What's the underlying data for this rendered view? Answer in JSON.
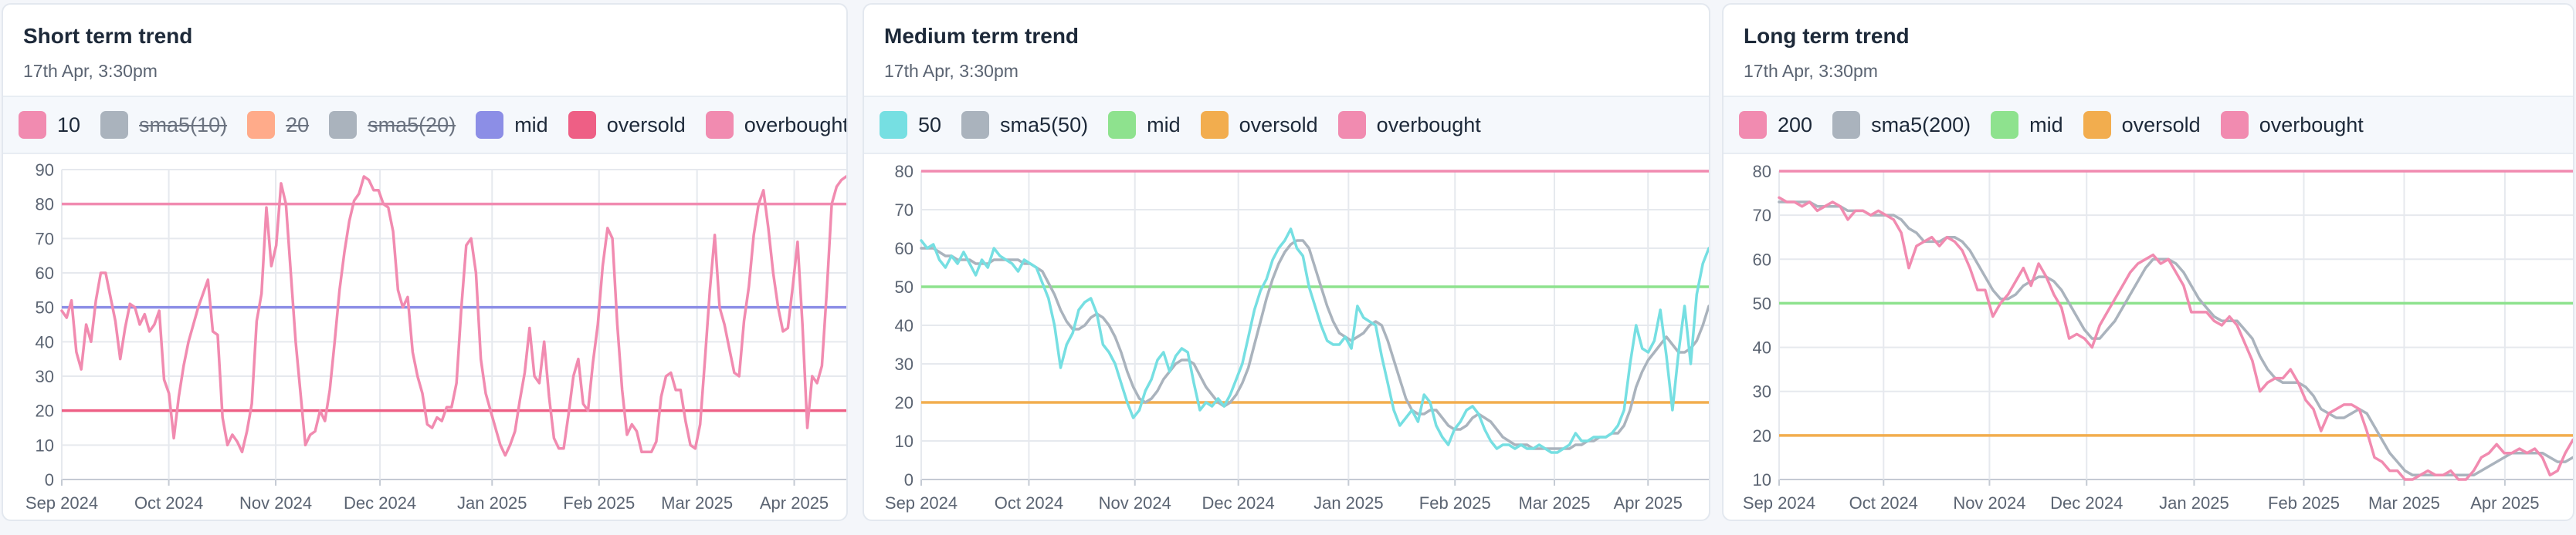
{
  "charts": [
    {
      "title": "Short term trend",
      "timestamp": "17th Apr, 3:30pm",
      "legend": [
        {
          "label": "10",
          "color": "#f18bb0",
          "hidden": false
        },
        {
          "label": "sma5(10)",
          "color": "#aab3bd",
          "hidden": true
        },
        {
          "label": "20",
          "color": "#ffab8a",
          "hidden": true
        },
        {
          "label": "sma5(20)",
          "color": "#aab3bd",
          "hidden": true
        },
        {
          "label": "mid",
          "color": "#8c8ee6",
          "hidden": false
        },
        {
          "label": "oversold",
          "color": "#ee5f85",
          "hidden": false
        },
        {
          "label": "overbought",
          "color": "#f18bb0",
          "hidden": false
        }
      ]
    },
    {
      "title": "Medium term trend",
      "timestamp": "17th Apr, 3:30pm",
      "legend": [
        {
          "label": "50",
          "color": "#76dfe2",
          "hidden": false
        },
        {
          "label": "sma5(50)",
          "color": "#aab3bd",
          "hidden": false
        },
        {
          "label": "mid",
          "color": "#8ee28e",
          "hidden": false
        },
        {
          "label": "oversold",
          "color": "#f2ad4e",
          "hidden": false
        },
        {
          "label": "overbought",
          "color": "#f18bb0",
          "hidden": false
        }
      ]
    },
    {
      "title": "Long term trend",
      "timestamp": "17th Apr, 3:30pm",
      "legend": [
        {
          "label": "200",
          "color": "#f18bb0",
          "hidden": false
        },
        {
          "label": "sma5(200)",
          "color": "#aab3bd",
          "hidden": false
        },
        {
          "label": "mid",
          "color": "#8ee28e",
          "hidden": false
        },
        {
          "label": "oversold",
          "color": "#f2ad4e",
          "hidden": false
        },
        {
          "label": "overbought",
          "color": "#f18bb0",
          "hidden": false
        }
      ]
    }
  ],
  "chart_data": [
    {
      "type": "line",
      "title": "Short term trend",
      "x_ticks": [
        "Sep 2024",
        "Oct 2024",
        "Nov 2024",
        "Dec 2024",
        "Jan 2025",
        "Feb 2025",
        "Mar 2025",
        "Apr 2025"
      ],
      "ylim": [
        0,
        90
      ],
      "y_ticks": [
        0,
        10,
        20,
        30,
        40,
        50,
        60,
        70,
        80,
        90
      ],
      "grid": true,
      "reference_lines": [
        {
          "name": "overbought",
          "value": 80,
          "color": "#f18bb0"
        },
        {
          "name": "mid",
          "value": 50,
          "color": "#8c8ee6"
        },
        {
          "name": "oversold",
          "value": 20,
          "color": "#ee5f85"
        }
      ],
      "series": [
        {
          "name": "10",
          "color": "#f18bb0",
          "values": [
            49,
            47,
            52,
            37,
            32,
            45,
            40,
            52,
            60,
            60,
            53,
            46,
            35,
            44,
            51,
            50,
            45,
            48,
            43,
            45,
            49,
            29,
            25,
            12,
            24,
            33,
            40,
            45,
            50,
            54,
            58,
            43,
            42,
            18,
            10,
            13,
            11,
            8,
            14,
            22,
            46,
            54,
            79,
            62,
            68,
            86,
            80,
            60,
            40,
            25,
            10,
            13,
            14,
            20,
            17,
            26,
            40,
            55,
            66,
            75,
            81,
            83,
            88,
            87,
            84,
            84,
            80,
            79,
            72,
            55,
            50,
            53,
            37,
            30,
            25,
            16,
            15,
            18,
            17,
            21,
            21,
            28,
            50,
            68,
            70,
            60,
            35,
            25,
            20,
            15,
            10,
            7,
            10,
            14,
            23,
            31,
            44,
            30,
            28,
            40,
            24,
            12,
            9,
            9,
            19,
            30,
            35,
            22,
            20,
            34,
            45,
            62,
            73,
            70,
            45,
            26,
            13,
            16,
            14,
            8,
            8,
            8,
            11,
            24,
            30,
            31,
            26,
            26,
            17,
            10,
            9,
            16,
            35,
            55,
            71,
            50,
            45,
            38,
            31,
            30,
            46,
            56,
            71,
            80,
            84,
            73,
            60,
            50,
            43,
            44,
            56,
            69,
            45,
            15,
            30,
            28,
            33,
            55,
            80,
            85,
            87,
            88
          ]
        },
        {
          "name": "sma5(10)",
          "color": "#aab3bd",
          "hidden": true
        },
        {
          "name": "20",
          "color": "#ffab8a",
          "hidden": true
        },
        {
          "name": "sma5(20)",
          "color": "#aab3bd",
          "hidden": true
        }
      ]
    },
    {
      "type": "line",
      "title": "Medium term trend",
      "x_ticks": [
        "Sep 2024",
        "Oct 2024",
        "Nov 2024",
        "Dec 2024",
        "Jan 2025",
        "Feb 2025",
        "Mar 2025",
        "Apr 2025"
      ],
      "ylim": [
        0,
        80
      ],
      "y_ticks": [
        0,
        10,
        20,
        30,
        40,
        50,
        60,
        70,
        80
      ],
      "grid": true,
      "reference_lines": [
        {
          "name": "overbought",
          "value": 80,
          "color": "#f18bb0"
        },
        {
          "name": "mid",
          "value": 50,
          "color": "#8ee28e"
        },
        {
          "name": "oversold",
          "value": 20,
          "color": "#f2ad4e"
        }
      ],
      "series": [
        {
          "name": "50",
          "color": "#76dfe2",
          "values": [
            62,
            60,
            61,
            57,
            55,
            58,
            56,
            59,
            56,
            53,
            57,
            55,
            60,
            58,
            57,
            56,
            54,
            57,
            56,
            55,
            51,
            47,
            40,
            29,
            35,
            38,
            44,
            46,
            47,
            43,
            35,
            33,
            30,
            25,
            20,
            16,
            18,
            23,
            26,
            31,
            33,
            28,
            32,
            34,
            33,
            25,
            18,
            20,
            19,
            21,
            19,
            22,
            26,
            30,
            37,
            44,
            49,
            52,
            57,
            60,
            62,
            65,
            60,
            58,
            50,
            45,
            40,
            36,
            35,
            35,
            37,
            34,
            45,
            42,
            41,
            40,
            32,
            25,
            18,
            14,
            16,
            18,
            15,
            22,
            20,
            14,
            11,
            9,
            13,
            15,
            18,
            19,
            17,
            13,
            10,
            8,
            9,
            9,
            8,
            9,
            8,
            8,
            9,
            8,
            7,
            7,
            8,
            9,
            12,
            10,
            10,
            11,
            11,
            11,
            12,
            14,
            18,
            30,
            40,
            34,
            33,
            36,
            44,
            32,
            18,
            33,
            45,
            30,
            48,
            56,
            60
          ]
        },
        {
          "name": "sma5(50)",
          "color": "#aab3bd",
          "values": [
            60,
            60,
            60,
            59,
            58,
            58,
            57,
            57,
            57,
            56,
            56,
            56,
            57,
            57,
            57,
            57,
            57,
            56,
            56,
            55,
            54,
            51,
            48,
            44,
            41,
            39,
            39,
            40,
            42,
            43,
            42,
            40,
            37,
            33,
            28,
            24,
            21,
            20,
            21,
            23,
            26,
            28,
            30,
            31,
            31,
            30,
            27,
            24,
            22,
            20,
            19,
            20,
            22,
            25,
            29,
            35,
            41,
            47,
            52,
            56,
            59,
            61,
            62,
            62,
            60,
            55,
            50,
            45,
            41,
            38,
            37,
            36,
            37,
            38,
            40,
            41,
            40,
            36,
            31,
            26,
            21,
            18,
            17,
            17,
            18,
            18,
            16,
            14,
            13,
            13,
            14,
            16,
            17,
            16,
            15,
            13,
            11,
            10,
            9,
            9,
            9,
            8,
            8,
            8,
            8,
            8,
            8,
            8,
            9,
            9,
            10,
            10,
            11,
            11,
            12,
            12,
            14,
            18,
            24,
            28,
            31,
            33,
            35,
            37,
            35,
            33,
            33,
            34,
            36,
            40,
            45
          ]
        }
      ]
    },
    {
      "type": "line",
      "title": "Long term trend",
      "x_ticks": [
        "Sep 2024",
        "Oct 2024",
        "Nov 2024",
        "Dec 2024",
        "Jan 2025",
        "Feb 2025",
        "Mar 2025",
        "Apr 2025"
      ],
      "ylim": [
        10,
        80
      ],
      "y_ticks": [
        10,
        20,
        30,
        40,
        50,
        60,
        70,
        80
      ],
      "grid": true,
      "reference_lines": [
        {
          "name": "overbought",
          "value": 80,
          "color": "#f18bb0"
        },
        {
          "name": "mid",
          "value": 50,
          "color": "#8ee28e"
        },
        {
          "name": "oversold",
          "value": 20,
          "color": "#f2ad4e"
        }
      ],
      "series": [
        {
          "name": "200",
          "color": "#f18bb0",
          "values": [
            74,
            73,
            73,
            72,
            73,
            71,
            72,
            73,
            72,
            69,
            71,
            71,
            70,
            71,
            70,
            69,
            66,
            58,
            63,
            64,
            65,
            63,
            65,
            64,
            62,
            58,
            53,
            53,
            47,
            50,
            52,
            55,
            58,
            54,
            59,
            56,
            52,
            49,
            42,
            43,
            42,
            40,
            45,
            48,
            51,
            54,
            57,
            59,
            60,
            61,
            59,
            60,
            57,
            54,
            48,
            48,
            48,
            46,
            45,
            47,
            45,
            41,
            37,
            30,
            32,
            33,
            33,
            35,
            32,
            28,
            26,
            21,
            25,
            26,
            27,
            27,
            26,
            21,
            15,
            14,
            12,
            12,
            10,
            9,
            11,
            12,
            11,
            11,
            12,
            10,
            10,
            12,
            15,
            16,
            18,
            16,
            16,
            17,
            16,
            17,
            15,
            11,
            12,
            16,
            19
          ]
        },
        {
          "name": "sma5(200)",
          "color": "#aab3bd",
          "values": [
            73,
            73,
            73,
            73,
            73,
            72,
            72,
            72,
            72,
            71,
            71,
            71,
            70,
            70,
            70,
            70,
            69,
            67,
            66,
            64,
            64,
            64,
            65,
            65,
            64,
            62,
            59,
            56,
            53,
            51,
            51,
            52,
            54,
            55,
            56,
            56,
            55,
            53,
            50,
            47,
            44,
            42,
            42,
            44,
            46,
            49,
            52,
            55,
            58,
            60,
            60,
            60,
            59,
            57,
            54,
            51,
            49,
            47,
            46,
            46,
            46,
            44,
            42,
            38,
            35,
            33,
            32,
            32,
            32,
            31,
            29,
            26,
            25,
            24,
            24,
            25,
            26,
            25,
            22,
            19,
            16,
            14,
            12,
            11,
            11,
            11,
            11,
            11,
            11,
            11,
            11,
            11,
            12,
            13,
            14,
            15,
            16,
            16,
            16,
            16,
            16,
            15,
            14,
            14,
            15
          ]
        }
      ]
    }
  ]
}
